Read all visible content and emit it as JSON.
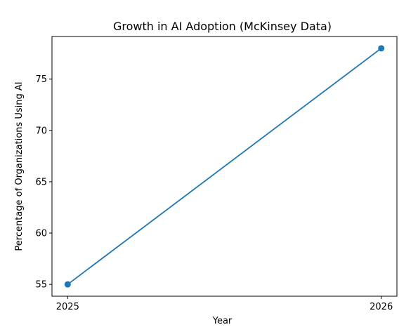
{
  "chart_data": {
    "type": "line",
    "title": "Growth in AI Adoption (McKinsey Data)",
    "xlabel": "Year",
    "ylabel": "Percentage of Organizations Using AI",
    "x": [
      2025,
      2026
    ],
    "xticks": [
      "2025",
      "2026"
    ],
    "yticks": [
      55,
      60,
      65,
      70,
      75
    ],
    "ylim": [
      53.85,
      79.15
    ],
    "series": [
      {
        "values": [
          55,
          78
        ],
        "color": "#1f77b4",
        "marker": "circle"
      }
    ],
    "grid": false
  }
}
